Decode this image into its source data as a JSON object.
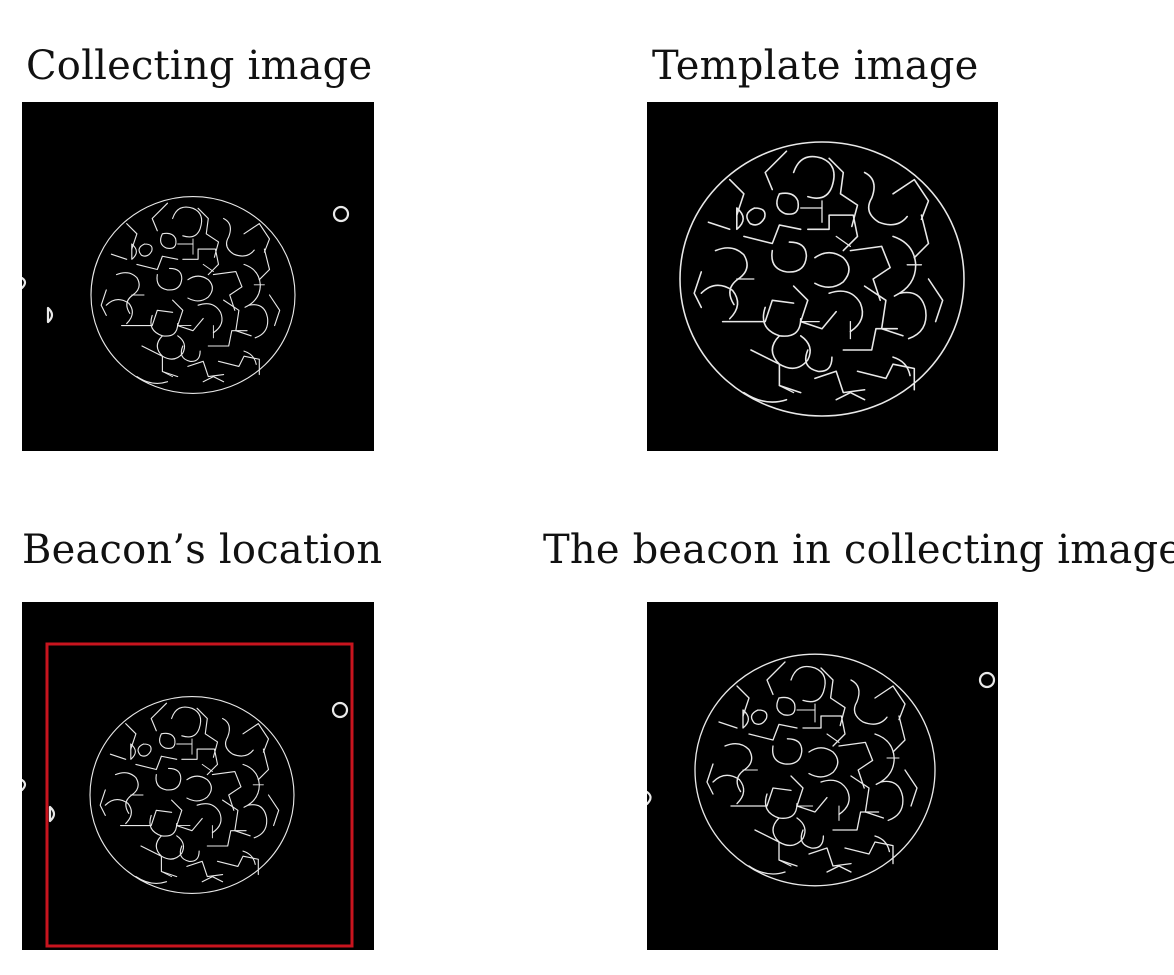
{
  "panels": {
    "collecting": {
      "caption": "Collecting image"
    },
    "template": {
      "caption": "Template image"
    },
    "location": {
      "caption": "Beacon’s location"
    },
    "beacon": {
      "caption": "The beacon in collecting image"
    }
  },
  "colors": {
    "background": "#000000",
    "edges": "#e9e9e9",
    "detection_box": "#c8141e"
  }
}
